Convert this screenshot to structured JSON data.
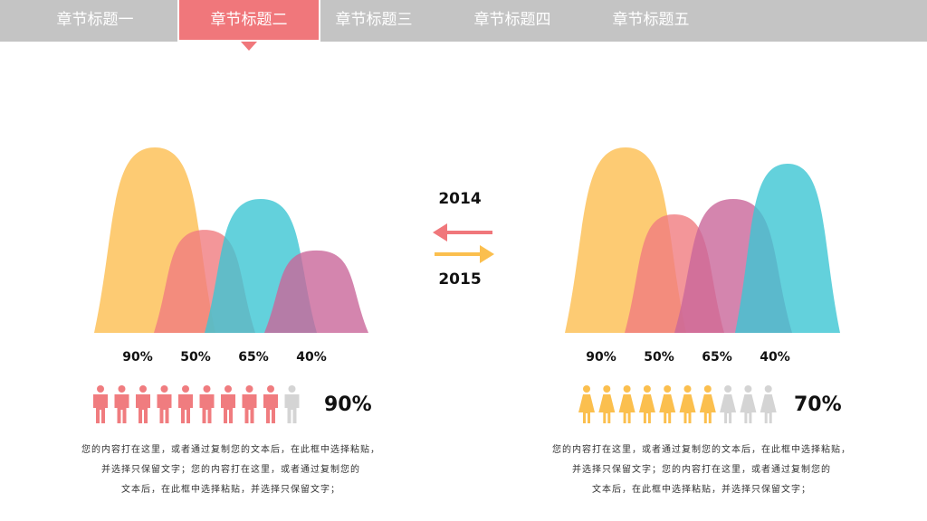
{
  "nav": {
    "tabs": [
      {
        "label": "章节标题一"
      },
      {
        "label": "章节标题二",
        "active": true
      },
      {
        "label": "章节标题三"
      },
      {
        "label": "章节标题四"
      },
      {
        "label": "章节标题五"
      }
    ]
  },
  "legend": {
    "year_top": "2014",
    "year_bottom": "2015",
    "arrow_top_color": "#f0777b",
    "arrow_bottom_color": "#fbbf4e"
  },
  "colors": {
    "yellow": "#fdc25a",
    "salmon": "#f07c7f",
    "teal": "#3cc6d3",
    "purple": "#c9679a",
    "person_gray": "#d4d4d4"
  },
  "chart_data": [
    {
      "type": "area",
      "categories": [
        "90%",
        "50%",
        "65%",
        "40%"
      ],
      "values": [
        90,
        50,
        65,
        40
      ],
      "person_total": 10,
      "person_filled": 9,
      "person_color": "#f07c7f",
      "person_icon": "male-person-icon",
      "summary": "90%",
      "text": [
        "您的内容打在这里，或者通过复制您的文本后，在此框中选择粘贴，",
        "并选择只保留文字；您的内容打在这里，或者通过复制您的",
        "文本后，在此框中选择粘贴，并选择只保留文字；"
      ]
    },
    {
      "type": "area",
      "categories": [
        "90%",
        "50%",
        "65%",
        "40%"
      ],
      "values": [
        90,
        50,
        65,
        40
      ],
      "person_total": 10,
      "person_filled": 7,
      "person_color": "#fbbf4e",
      "person_icon": "female-person-icon",
      "summary": "70%",
      "text": [
        "您的内容打在这里，或者通过复制您的文本后，在此框中选择粘贴，",
        "并选择只保留文字；您的内容打在这里，或者通过复制您的",
        "文本后，在此框中选择粘贴，并选择只保留文字；"
      ]
    }
  ]
}
